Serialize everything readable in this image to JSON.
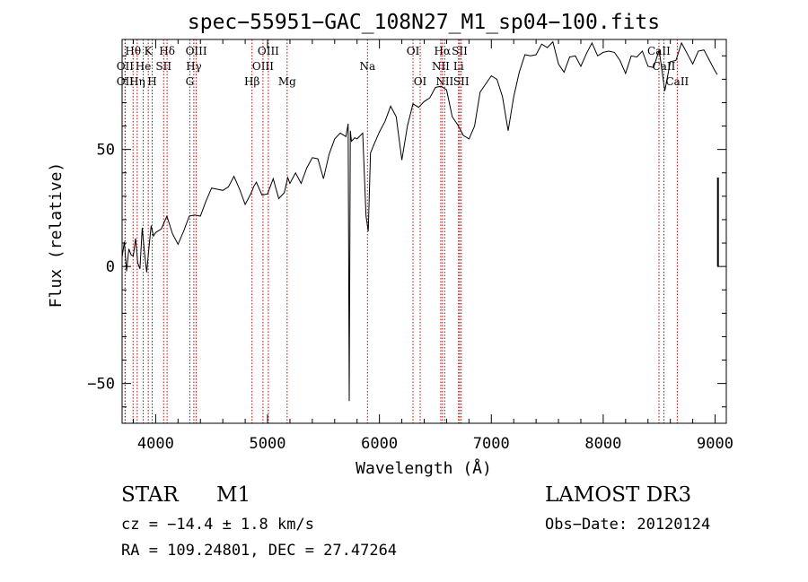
{
  "chart_data": {
    "type": "line",
    "title": "spec−55951−GAC_108N27_M1_sp04−100.fits",
    "xlabel": "Wavelength (Å)",
    "ylabel": "Flux (relative)",
    "xlim": [
      3700,
      9100
    ],
    "ylim": [
      -67,
      97
    ],
    "xticks": [
      4000,
      5000,
      6000,
      7000,
      8000,
      9000
    ],
    "yticks": [
      -50,
      0,
      50
    ],
    "series": [
      {
        "name": "spectrum",
        "x": [
          3700,
          3720,
          3740,
          3760,
          3780,
          3800,
          3820,
          3840,
          3860,
          3880,
          3900,
          3920,
          3940,
          3960,
          3980,
          4000,
          4050,
          4100,
          4150,
          4200,
          4250,
          4300,
          4350,
          4400,
          4450,
          4500,
          4550,
          4600,
          4650,
          4700,
          4750,
          4800,
          4850,
          4880,
          4900,
          4950,
          5000,
          5050,
          5100,
          5150,
          5180,
          5200,
          5250,
          5300,
          5350,
          5400,
          5450,
          5500,
          5550,
          5600,
          5650,
          5700,
          5720,
          5730,
          5740,
          5750,
          5780,
          5800,
          5850,
          5880,
          5900,
          5920,
          5950,
          6000,
          6050,
          6100,
          6150,
          6200,
          6250,
          6300,
          6350,
          6400,
          6450,
          6500,
          6550,
          6600,
          6650,
          6700,
          6750,
          6800,
          6850,
          6900,
          6950,
          7000,
          7050,
          7100,
          7150,
          7200,
          7250,
          7300,
          7350,
          7400,
          7450,
          7500,
          7550,
          7600,
          7650,
          7700,
          7750,
          7800,
          7850,
          7900,
          7950,
          8000,
          8050,
          8100,
          8150,
          8200,
          8250,
          8300,
          8350,
          8400,
          8450,
          8500,
          8550,
          8600,
          8650,
          8700,
          8750,
          8800,
          8850,
          8900,
          8950,
          9000,
          9020
        ],
        "y": [
          4,
          8,
          -2,
          10,
          5,
          2,
          12,
          4,
          -1,
          14,
          6,
          0,
          8,
          15,
          13,
          17,
          16,
          19,
          14,
          12,
          15,
          19,
          22,
          24,
          28,
          31,
          33,
          35,
          34,
          36,
          33,
          29,
          31,
          32,
          36,
          33,
          31,
          35,
          29,
          34,
          38,
          33,
          40,
          38,
          42,
          44,
          46,
          40,
          48,
          52,
          57,
          58,
          61,
          -60,
          58,
          56,
          55,
          52,
          57,
          24,
          15,
          46,
          52,
          60,
          62,
          66,
          64,
          48,
          60,
          67,
          68,
          73,
          72,
          74,
          77,
          78,
          64,
          58,
          56,
          57,
          60,
          72,
          78,
          84,
          80,
          70,
          58,
          75,
          83,
          88,
          90,
          93,
          95,
          91,
          96,
          89,
          83,
          87,
          90,
          88,
          91,
          93,
          90,
          94,
          92,
          89,
          88,
          85,
          90,
          87,
          92,
          88,
          85,
          90,
          75,
          90,
          88,
          93,
          91,
          89,
          92,
          90,
          88,
          86,
          82
        ]
      },
      {
        "name": "edge spike",
        "x": [
          9025,
          9025
        ],
        "y": [
          0,
          38
        ]
      }
    ],
    "lines": [
      {
        "label": "Hθ",
        "x": 3798,
        "row": 1
      },
      {
        "label": "OII",
        "x": 3727,
        "row": 2
      },
      {
        "label": "OII",
        "x": 3727,
        "row": 3
      },
      {
        "label": "Hη",
        "x": 3835,
        "row": 3
      },
      {
        "label": "He",
        "x": 3889,
        "row": 2
      },
      {
        "label": "K",
        "x": 3934,
        "row": 1
      },
      {
        "label": "H",
        "x": 3969,
        "row": 3
      },
      {
        "label": "SII",
        "x": 4071,
        "row": 2
      },
      {
        "label": "Hδ",
        "x": 4102,
        "row": 1
      },
      {
        "label": "OIII",
        "x": 4363,
        "row": 1
      },
      {
        "label": "Hγ",
        "x": 4341,
        "row": 2
      },
      {
        "label": "G",
        "x": 4305,
        "row": 3
      },
      {
        "label": "Hβ",
        "x": 4861,
        "row": 3
      },
      {
        "label": "OIII",
        "x": 5007,
        "row": 1
      },
      {
        "label": "OIII",
        "x": 4959,
        "row": 2
      },
      {
        "label": "Mg",
        "x": 5175,
        "row": 3
      },
      {
        "label": "Na",
        "x": 5893,
        "row": 2
      },
      {
        "label": "OI",
        "x": 6300,
        "row": 1
      },
      {
        "label": "OI",
        "x": 6364,
        "row": 3
      },
      {
        "label": "Hα",
        "x": 6563,
        "row": 1
      },
      {
        "label": "NII",
        "x": 6548,
        "row": 2
      },
      {
        "label": "NII",
        "x": 6583,
        "row": 3
      },
      {
        "label": "SII",
        "x": 6717,
        "row": 1
      },
      {
        "label": "Li",
        "x": 6707,
        "row": 2
      },
      {
        "label": "SII",
        "x": 6731,
        "row": 3
      },
      {
        "label": "CaII",
        "x": 8498,
        "row": 1
      },
      {
        "label": "CaII",
        "x": 8542,
        "row": 2
      },
      {
        "label": "CaII",
        "x": 8662,
        "row": 3
      }
    ]
  },
  "info": {
    "object_class": "STAR",
    "subclass": "M1",
    "cz": "cz = −14.4 ± 1.8 km/s",
    "coords": "RA = 109.24801, DEC =  27.47264",
    "survey": "LAMOST DR3",
    "obs_date": "Obs−Date: 20120124"
  }
}
